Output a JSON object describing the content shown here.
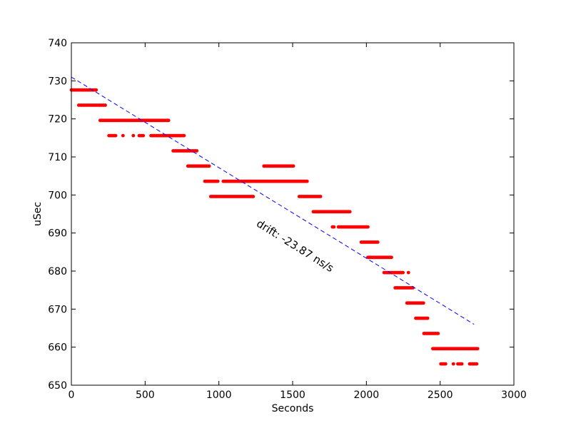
{
  "chart_data": {
    "type": "scatter",
    "title": "",
    "xlabel": "Seconds",
    "ylabel": "uSec",
    "xlim": [
      0,
      3000
    ],
    "ylim": [
      650,
      740
    ],
    "xticks": [
      0,
      500,
      1000,
      1500,
      2000,
      2500,
      3000
    ],
    "yticks": [
      650,
      660,
      670,
      680,
      690,
      700,
      710,
      720,
      730,
      740
    ],
    "grid": false,
    "colors": {
      "points": "#ff0000",
      "fit_line": "#0000ff"
    },
    "series": [
      {
        "type": "scatter",
        "segments": [
          {
            "y": 727.6,
            "x_start": 0,
            "x_end": 175,
            "step": 8
          },
          {
            "y": 723.6,
            "x_start": 50,
            "x_end": 235,
            "step": 10
          },
          {
            "y": 719.6,
            "x_start": 195,
            "x_end": 660,
            "step": 8
          },
          {
            "y": 715.6,
            "x_start": 255,
            "x_end": 300,
            "step": 9
          },
          {
            "y": 715.6,
            "x_start": 350,
            "x_end": 355,
            "step": 10
          },
          {
            "y": 715.6,
            "x_start": 420,
            "x_end": 425,
            "step": 10
          },
          {
            "y": 715.6,
            "x_start": 460,
            "x_end": 495,
            "step": 9
          },
          {
            "y": 715.6,
            "x_start": 540,
            "x_end": 770,
            "step": 8
          },
          {
            "y": 711.6,
            "x_start": 690,
            "x_end": 850,
            "step": 8
          },
          {
            "y": 707.6,
            "x_start": 790,
            "x_end": 935,
            "step": 8
          },
          {
            "y": 707.6,
            "x_start": 1305,
            "x_end": 1505,
            "step": 8
          },
          {
            "y": 703.6,
            "x_start": 905,
            "x_end": 1000,
            "step": 8
          },
          {
            "y": 703.6,
            "x_start": 1030,
            "x_end": 1600,
            "step": 8
          },
          {
            "y": 699.6,
            "x_start": 945,
            "x_end": 1235,
            "step": 8
          },
          {
            "y": 699.6,
            "x_start": 1545,
            "x_end": 1695,
            "step": 8
          },
          {
            "y": 695.6,
            "x_start": 1640,
            "x_end": 1895,
            "step": 8
          },
          {
            "y": 691.6,
            "x_start": 1770,
            "x_end": 1785,
            "step": 10
          },
          {
            "y": 691.6,
            "x_start": 1810,
            "x_end": 2015,
            "step": 8
          },
          {
            "y": 687.6,
            "x_start": 1965,
            "x_end": 2080,
            "step": 8
          },
          {
            "y": 683.6,
            "x_start": 2010,
            "x_end": 2170,
            "step": 8
          },
          {
            "y": 679.6,
            "x_start": 2120,
            "x_end": 2250,
            "step": 8
          },
          {
            "y": 679.6,
            "x_start": 2285,
            "x_end": 2290,
            "step": 10
          },
          {
            "y": 675.6,
            "x_start": 2195,
            "x_end": 2320,
            "step": 8
          },
          {
            "y": 671.6,
            "x_start": 2275,
            "x_end": 2390,
            "step": 8
          },
          {
            "y": 667.6,
            "x_start": 2335,
            "x_end": 2420,
            "step": 8
          },
          {
            "y": 663.6,
            "x_start": 2390,
            "x_end": 2490,
            "step": 8
          },
          {
            "y": 659.6,
            "x_start": 2450,
            "x_end": 2755,
            "step": 8
          },
          {
            "y": 655.6,
            "x_start": 2505,
            "x_end": 2540,
            "step": 8
          },
          {
            "y": 655.6,
            "x_start": 2590,
            "x_end": 2595,
            "step": 10
          },
          {
            "y": 655.6,
            "x_start": 2620,
            "x_end": 2655,
            "step": 9
          },
          {
            "y": 655.6,
            "x_start": 2700,
            "x_end": 2755,
            "step": 8
          }
        ]
      },
      {
        "type": "line",
        "style": "dashed",
        "x": [
          0,
          2730
        ],
        "y": [
          731,
          666
        ]
      }
    ],
    "annotation": {
      "text": "drift: -23.87 ns/s",
      "x": 1250,
      "y": 692,
      "rotation_deg": 32
    }
  }
}
